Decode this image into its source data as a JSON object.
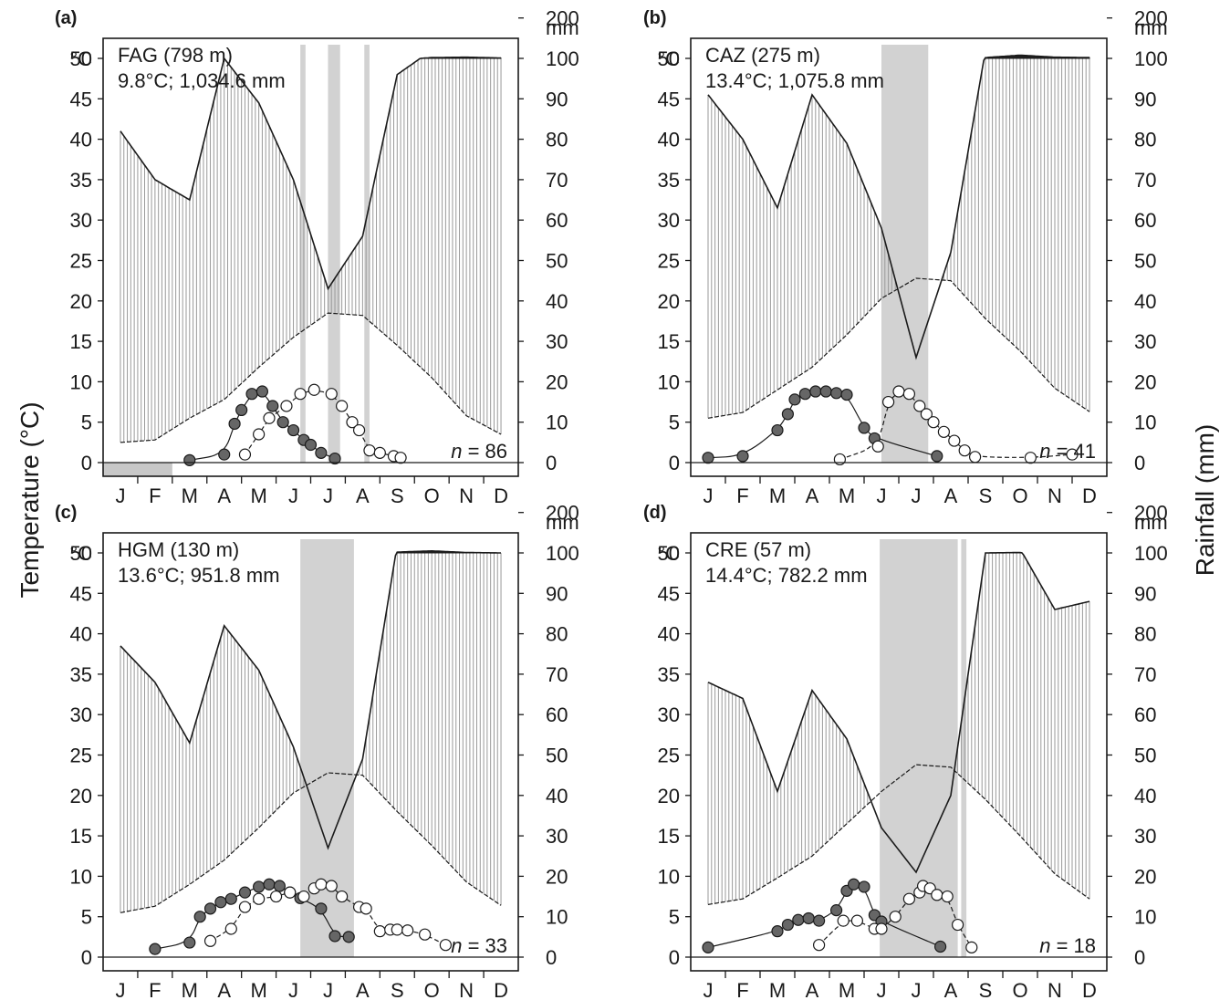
{
  "figure": {
    "y_title_left": "Temperature (°C)",
    "y_title_right": "Rainfall (mm)",
    "unit_left": "°C",
    "unit_right": "mm"
  },
  "chart_data": [
    {
      "panel": "(a)",
      "type": "line",
      "title": "FAG (798 m)",
      "subtitle": "9.8°C; 1,034.6 mm",
      "n_label": "n = 86",
      "categories": [
        "J",
        "F",
        "M",
        "A",
        "M",
        "J",
        "J",
        "A",
        "S",
        "O",
        "N",
        "D"
      ],
      "ylim_left": [
        0,
        50
      ],
      "ylim_right": [
        0,
        200
      ],
      "left_ticks": [
        0,
        5,
        10,
        15,
        20,
        25,
        30,
        35,
        40,
        45,
        50
      ],
      "right_ticks": [
        0,
        10,
        20,
        30,
        40,
        50,
        60,
        70,
        80,
        90,
        100,
        200
      ],
      "series": [
        {
          "axis": "right",
          "values": [
            82,
            70,
            65,
            100,
            89,
            70,
            43,
            56,
            96,
            102,
            103,
            101
          ]
        },
        {
          "axis": "left",
          "values": [
            2.5,
            2.8,
            5.5,
            7.8,
            11.8,
            15.5,
            18.5,
            18.2,
            14.5,
            10.5,
            5.8,
            3.5
          ]
        },
        {
          "marker": "filled",
          "points": [
            [
              3.0,
              0.3
            ],
            [
              4.0,
              1.0
            ],
            [
              4.3,
              4.8
            ],
            [
              4.5,
              6.5
            ],
            [
              4.8,
              8.5
            ],
            [
              5.1,
              8.8
            ],
            [
              5.4,
              7.0
            ],
            [
              5.7,
              5.0
            ],
            [
              6.0,
              4.0
            ],
            [
              6.3,
              2.8
            ],
            [
              6.5,
              2.2
            ],
            [
              6.8,
              1.2
            ],
            [
              7.2,
              0.5
            ]
          ]
        },
        {
          "marker": "open",
          "points": [
            [
              4.6,
              1.0
            ],
            [
              5.0,
              3.5
            ],
            [
              5.3,
              5.5
            ],
            [
              5.8,
              7.0
            ],
            [
              6.2,
              8.5
            ],
            [
              6.6,
              9.0
            ],
            [
              7.1,
              8.5
            ],
            [
              7.4,
              7.0
            ],
            [
              7.7,
              5.0
            ],
            [
              7.9,
              4.0
            ],
            [
              8.2,
              1.5
            ],
            [
              8.5,
              1.2
            ],
            [
              8.9,
              0.8
            ],
            [
              9.1,
              0.6
            ]
          ]
        }
      ],
      "dry_shading": [
        [
          6.2,
          6.35
        ],
        [
          7.0,
          7.35
        ],
        [
          8.05,
          8.2
        ]
      ],
      "frost_bar": [
        0.5,
        2.5
      ]
    },
    {
      "panel": "(b)",
      "type": "line",
      "title": "CAZ (275 m)",
      "subtitle": "13.4°C; 1,075.8 mm",
      "n_label": "n = 41",
      "categories": [
        "J",
        "F",
        "M",
        "A",
        "M",
        "J",
        "J",
        "A",
        "S",
        "O",
        "N",
        "D"
      ],
      "ylim_left": [
        0,
        50
      ],
      "ylim_right": [
        0,
        200
      ],
      "left_ticks": [
        0,
        5,
        10,
        15,
        20,
        25,
        30,
        35,
        40,
        45,
        50
      ],
      "right_ticks": [
        0,
        10,
        20,
        30,
        40,
        50,
        60,
        70,
        80,
        90,
        100,
        200
      ],
      "series": [
        {
          "axis": "right",
          "values": [
            91,
            80,
            63,
            91,
            79,
            58,
            26,
            52,
            102,
            108,
            103,
            102
          ]
        },
        {
          "axis": "left",
          "values": [
            5.5,
            6.2,
            9.0,
            11.8,
            15.8,
            20.3,
            22.8,
            22.5,
            17.8,
            13.8,
            9.2,
            6.3
          ]
        },
        {
          "marker": "filled",
          "points": [
            [
              1.0,
              0.6
            ],
            [
              2.0,
              0.8
            ],
            [
              3.0,
              4.0
            ],
            [
              3.3,
              6.0
            ],
            [
              3.5,
              7.8
            ],
            [
              3.8,
              8.5
            ],
            [
              4.1,
              8.8
            ],
            [
              4.4,
              8.8
            ],
            [
              4.7,
              8.6
            ],
            [
              5.0,
              8.4
            ],
            [
              5.5,
              4.3
            ],
            [
              5.8,
              3.0
            ],
            [
              7.6,
              0.8
            ]
          ]
        },
        {
          "marker": "open",
          "points": [
            [
              4.8,
              0.4
            ],
            [
              5.9,
              2.0
            ],
            [
              6.2,
              7.5
            ],
            [
              6.5,
              8.8
            ],
            [
              6.8,
              8.5
            ],
            [
              7.1,
              7.0
            ],
            [
              7.3,
              6.0
            ],
            [
              7.5,
              5.0
            ],
            [
              7.8,
              3.8
            ],
            [
              8.1,
              2.7
            ],
            [
              8.4,
              1.5
            ],
            [
              8.7,
              0.7
            ],
            [
              10.3,
              0.6
            ],
            [
              11.5,
              1.0
            ]
          ]
        }
      ],
      "dry_shading": [
        [
          6.0,
          7.35
        ]
      ]
    },
    {
      "panel": "(c)",
      "type": "line",
      "title": "HGM (130 m)",
      "subtitle": "13.6°C; 951.8 mm",
      "n_label": "n = 33",
      "categories": [
        "J",
        "F",
        "M",
        "A",
        "M",
        "J",
        "J",
        "A",
        "S",
        "O",
        "N",
        "D"
      ],
      "ylim_left": [
        0,
        50
      ],
      "ylim_right": [
        0,
        200
      ],
      "left_ticks": [
        0,
        5,
        10,
        15,
        20,
        25,
        30,
        35,
        40,
        45,
        50
      ],
      "right_ticks": [
        0,
        10,
        20,
        30,
        40,
        50,
        60,
        70,
        80,
        90,
        100,
        200
      ],
      "series": [
        {
          "axis": "right",
          "values": [
            77,
            68,
            53,
            82,
            71,
            52,
            27,
            49,
            102,
            105,
            101,
            100
          ]
        },
        {
          "axis": "left",
          "values": [
            5.5,
            6.3,
            9.0,
            12.0,
            16.0,
            20.3,
            22.8,
            22.5,
            18.0,
            13.8,
            9.3,
            6.4
          ]
        },
        {
          "marker": "filled",
          "points": [
            [
              2.0,
              1.0
            ],
            [
              3.0,
              1.8
            ],
            [
              3.3,
              5.0
            ],
            [
              3.6,
              6.0
            ],
            [
              3.9,
              6.8
            ],
            [
              4.2,
              7.2
            ],
            [
              4.6,
              8.0
            ],
            [
              5.0,
              8.7
            ],
            [
              5.3,
              9.0
            ],
            [
              5.6,
              8.8
            ],
            [
              5.9,
              8.0
            ],
            [
              6.2,
              7.3
            ],
            [
              6.8,
              6.0
            ],
            [
              7.2,
              2.6
            ],
            [
              7.6,
              2.5
            ]
          ]
        },
        {
          "marker": "open",
          "points": [
            [
              3.6,
              2.0
            ],
            [
              4.2,
              3.5
            ],
            [
              4.6,
              6.2
            ],
            [
              5.0,
              7.2
            ],
            [
              5.5,
              7.5
            ],
            [
              5.9,
              8.0
            ],
            [
              6.3,
              7.5
            ],
            [
              6.6,
              8.5
            ],
            [
              6.8,
              9.0
            ],
            [
              7.1,
              8.8
            ],
            [
              7.4,
              7.5
            ],
            [
              7.9,
              6.2
            ],
            [
              8.1,
              6.0
            ],
            [
              8.5,
              3.2
            ],
            [
              8.8,
              3.4
            ],
            [
              9.0,
              3.4
            ],
            [
              9.3,
              3.3
            ],
            [
              9.8,
              2.8
            ],
            [
              10.4,
              1.5
            ]
          ]
        }
      ],
      "dry_shading": [
        [
          6.2,
          7.75
        ]
      ]
    },
    {
      "panel": "(d)",
      "type": "line",
      "title": "CRE (57 m)",
      "subtitle": "14.4°C; 782.2 mm",
      "n_label": "n = 18",
      "categories": [
        "J",
        "F",
        "M",
        "A",
        "M",
        "J",
        "J",
        "A",
        "S",
        "O",
        "N",
        "D"
      ],
      "ylim_left": [
        0,
        50
      ],
      "ylim_right": [
        0,
        200
      ],
      "left_ticks": [
        0,
        5,
        10,
        15,
        20,
        25,
        30,
        35,
        40,
        45,
        50
      ],
      "right_ticks": [
        0,
        10,
        20,
        30,
        40,
        50,
        60,
        70,
        80,
        90,
        100,
        200
      ],
      "series": [
        {
          "axis": "right",
          "values": [
            68,
            64,
            41,
            66,
            54,
            32,
            21,
            40,
            100,
            101,
            86,
            88
          ]
        },
        {
          "axis": "left",
          "values": [
            6.5,
            7.2,
            9.8,
            12.5,
            16.5,
            20.5,
            23.8,
            23.5,
            19.5,
            15.0,
            10.3,
            7.2
          ]
        },
        {
          "marker": "filled",
          "points": [
            [
              1.0,
              1.2
            ],
            [
              3.0,
              3.2
            ],
            [
              3.3,
              4.0
            ],
            [
              3.6,
              4.6
            ],
            [
              3.9,
              4.8
            ],
            [
              4.2,
              4.5
            ],
            [
              4.7,
              5.8
            ],
            [
              5.0,
              8.2
            ],
            [
              5.2,
              9.0
            ],
            [
              5.5,
              8.7
            ],
            [
              5.8,
              5.2
            ],
            [
              6.0,
              4.4
            ],
            [
              7.7,
              1.3
            ]
          ]
        },
        {
          "marker": "open",
          "points": [
            [
              4.2,
              1.5
            ],
            [
              4.9,
              4.5
            ],
            [
              5.3,
              4.5
            ],
            [
              5.8,
              3.5
            ],
            [
              6.0,
              3.5
            ],
            [
              6.4,
              5.0
            ],
            [
              6.8,
              7.2
            ],
            [
              7.1,
              8.0
            ],
            [
              7.2,
              8.8
            ],
            [
              7.4,
              8.5
            ],
            [
              7.6,
              7.7
            ],
            [
              7.9,
              7.5
            ],
            [
              8.2,
              4.0
            ],
            [
              8.6,
              1.2
            ]
          ]
        }
      ],
      "dry_shading": [
        [
          5.95,
          8.2
        ],
        [
          8.3,
          8.45
        ]
      ]
    }
  ]
}
